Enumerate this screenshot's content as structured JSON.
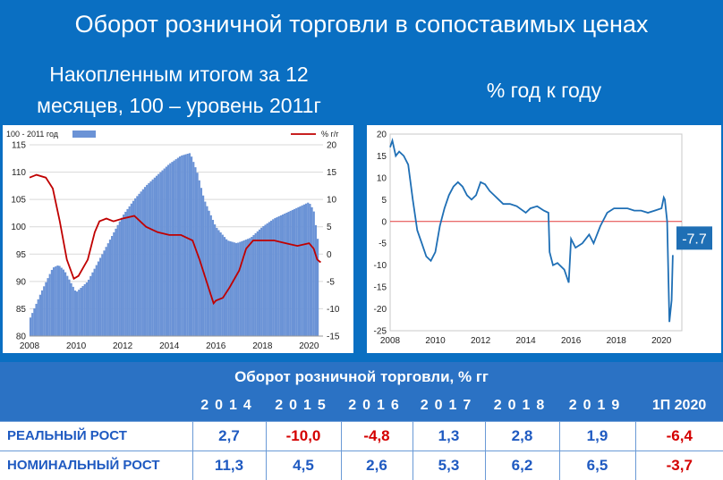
{
  "main_title": "Оборот розничной торговли в сопоставимых ценах",
  "left_subtitle_line1": "Накопленным итогом за 12",
  "left_subtitle_line2": "месяцев, 100 – уровень 2011г",
  "right_subtitle": "% год к году",
  "colors": {
    "background": "#0a6fc2",
    "bar": "#6b93d6",
    "line_red": "#c00000",
    "line_blue": "#1f6fb5",
    "negative": "#d40000",
    "positive": "#1f5ac1"
  },
  "chart_data": [
    {
      "type": "bar+line",
      "legend": {
        "bars": "100 - 2011 год",
        "line": "%  г/г"
      },
      "x_ticks": [
        "2008",
        "2010",
        "2012",
        "2014",
        "2016",
        "2018",
        "2020"
      ],
      "y_left_ticks": [
        "80",
        "85",
        "90",
        "95",
        "100",
        "105",
        "110",
        "115"
      ],
      "y_right_ticks": [
        "-15",
        "-10",
        "-5",
        "0",
        "5",
        "10",
        "15",
        "20"
      ],
      "ylim_left": [
        80,
        115
      ],
      "ylim_right": [
        -15,
        20
      ],
      "xlim": [
        2008.0,
        2020.6
      ],
      "bars": {
        "name": "100 - 2011 год",
        "x": [
          2008.0,
          2008.5,
          2009.0,
          2009.25,
          2009.5,
          2010.0,
          2010.5,
          2011.0,
          2011.5,
          2012.0,
          2012.5,
          2013.0,
          2013.5,
          2014.0,
          2014.5,
          2014.9,
          2015.2,
          2015.5,
          2016.0,
          2016.5,
          2016.9,
          2017.5,
          2018.0,
          2018.5,
          2019.0,
          2019.5,
          2020.0,
          2020.2,
          2020.4
        ],
        "values": [
          83,
          88,
          92.5,
          93,
          92,
          88,
          90,
          94,
          98,
          102,
          105,
          107.5,
          109.5,
          111.5,
          113,
          113.5,
          110,
          105,
          100,
          97.5,
          97,
          98,
          100,
          101.5,
          102.5,
          103.5,
          104.5,
          103,
          97
        ]
      },
      "line": {
        "name": "%  г/г",
        "x": [
          2008.0,
          2008.3,
          2008.7,
          2009.0,
          2009.3,
          2009.6,
          2009.9,
          2010.1,
          2010.5,
          2010.8,
          2011.0,
          2011.3,
          2011.6,
          2012.0,
          2012.5,
          2013.0,
          2013.5,
          2014.0,
          2014.5,
          2015.0,
          2015.3,
          2015.6,
          2015.9,
          2016.0,
          2016.3,
          2016.6,
          2017.0,
          2017.3,
          2017.6,
          2018.0,
          2018.5,
          2019.0,
          2019.5,
          2020.0,
          2020.2,
          2020.35,
          2020.5
        ],
        "values": [
          14,
          14.5,
          14,
          12,
          6,
          -1,
          -4.5,
          -4,
          -1,
          4,
          6,
          6.5,
          6,
          6.5,
          7,
          5,
          4,
          3.5,
          3.5,
          2.5,
          -1,
          -5,
          -9,
          -8.5,
          -8,
          -6,
          -3,
          1,
          2.5,
          2.5,
          2.5,
          2,
          1.5,
          2,
          1,
          -1,
          -1.5
        ]
      }
    },
    {
      "type": "line",
      "x_ticks": [
        "2008",
        "2010",
        "2012",
        "2014",
        "2016",
        "2018",
        "2020"
      ],
      "y_ticks": [
        "20",
        "15",
        "10",
        "5",
        "0",
        "-5",
        "-10",
        "-15",
        "-20",
        "-25"
      ],
      "ylim": [
        -25,
        20
      ],
      "xlim": [
        2008.0,
        2020.9
      ],
      "annotation": "-7.7",
      "series": {
        "x": [
          2008.0,
          2008.1,
          2008.25,
          2008.4,
          2008.6,
          2008.8,
          2009.0,
          2009.2,
          2009.4,
          2009.6,
          2009.8,
          2010.0,
          2010.2,
          2010.4,
          2010.6,
          2010.8,
          2011.0,
          2011.2,
          2011.4,
          2011.6,
          2011.8,
          2012.0,
          2012.2,
          2012.4,
          2012.6,
          2012.8,
          2013.0,
          2013.3,
          2013.6,
          2014.0,
          2014.2,
          2014.5,
          2014.8,
          2015.0,
          2015.05,
          2015.2,
          2015.4,
          2015.7,
          2015.9,
          2016.0,
          2016.2,
          2016.5,
          2016.8,
          2017.0,
          2017.3,
          2017.6,
          2017.9,
          2018.2,
          2018.5,
          2018.8,
          2019.1,
          2019.4,
          2019.7,
          2020.0,
          2020.1,
          2020.15,
          2020.25,
          2020.35,
          2020.45,
          2020.5
        ],
        "values": [
          17,
          18.5,
          15,
          16,
          15,
          13,
          5,
          -2,
          -5,
          -8,
          -9,
          -7,
          -1,
          3,
          6,
          8,
          9,
          8,
          6,
          5,
          6,
          9,
          8.5,
          7,
          6,
          5,
          4,
          4,
          3.5,
          2,
          3,
          3.5,
          2.5,
          2,
          -7,
          -10,
          -9.5,
          -11,
          -14,
          -4,
          -6,
          -5,
          -3,
          -5,
          -1,
          2,
          3,
          3,
          3,
          2.5,
          2.5,
          2,
          2.5,
          3,
          5.5,
          5,
          0,
          -23,
          -18,
          -7.7
        ]
      }
    }
  ],
  "table": {
    "title": "Оборот розничной торговли, % гг",
    "headers": [
      "",
      "2014",
      "2015",
      "2016",
      "2017",
      "2018",
      "2019",
      "1П 2020"
    ],
    "rows": [
      {
        "label": "РЕАЛЬНЫЙ РОСТ",
        "cells": [
          "2,7",
          "-10,0",
          "-4,8",
          "1,3",
          "2,8",
          "1,9",
          "-6,4"
        ]
      },
      {
        "label": "НОМИНАЛЬНЫЙ РОСТ",
        "cells": [
          "11,3",
          "4,5",
          "2,6",
          "5,3",
          "6,2",
          "6,5",
          "-3,7"
        ]
      }
    ]
  }
}
